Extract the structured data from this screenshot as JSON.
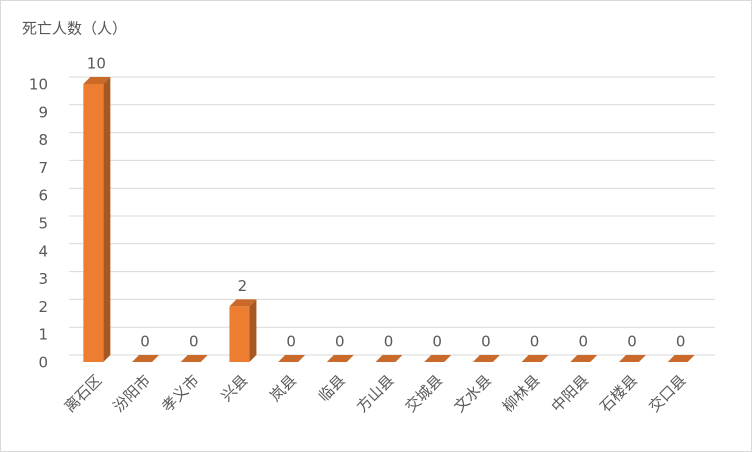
{
  "chart_data": {
    "type": "bar3d",
    "title": "死亡人数（人）",
    "categories": [
      "离石区",
      "汾阳市",
      "孝义市",
      "兴县",
      "岚县",
      "临县",
      "方山县",
      "交城县",
      "文水县",
      "柳林县",
      "中阳县",
      "石楼县",
      "交口县"
    ],
    "values": [
      10,
      0,
      0,
      2,
      0,
      0,
      0,
      0,
      0,
      0,
      0,
      0,
      0
    ],
    "color": "#ED7D31",
    "ylim": [
      0,
      10
    ],
    "yticks": [
      0,
      1,
      2,
      3,
      4,
      5,
      6,
      7,
      8,
      9,
      10
    ],
    "grid": true
  }
}
